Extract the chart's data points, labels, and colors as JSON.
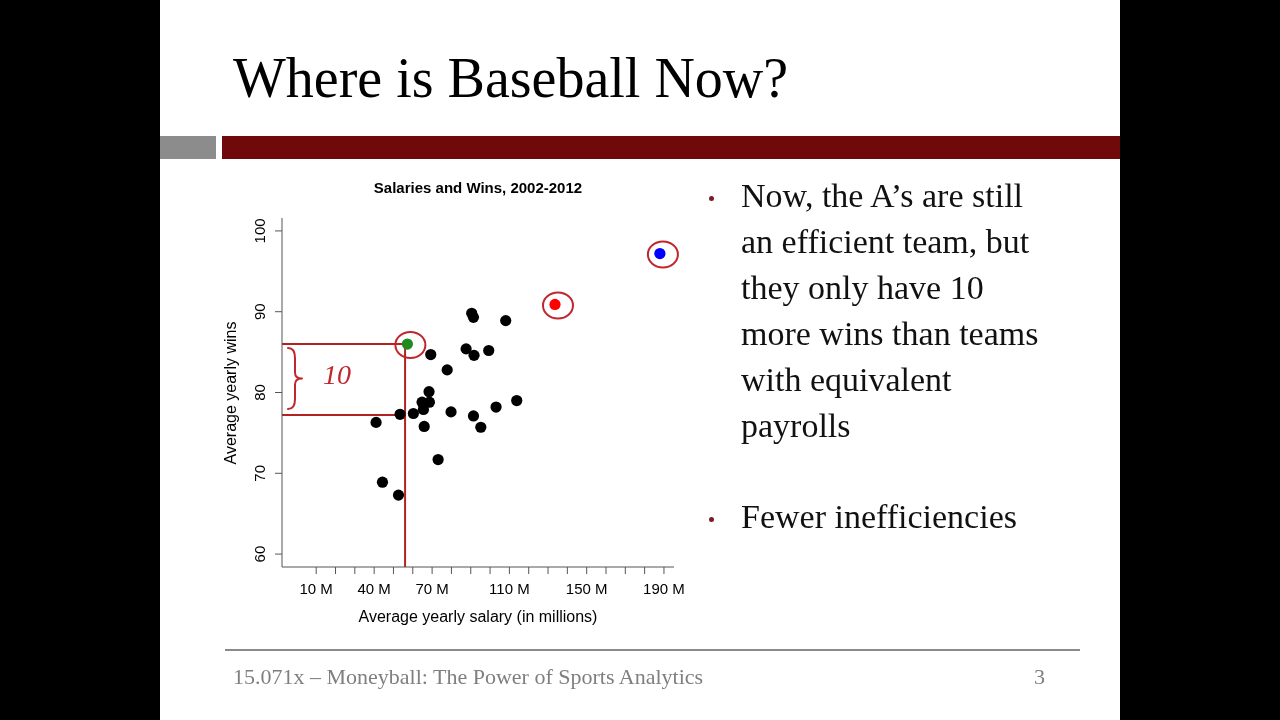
{
  "chart_data": {
    "type": "scatter",
    "title": "Where is Baseball Now?",
    "subtitle": "Salaries and Wins, 2002-2012",
    "xlabel": "Average yearly salary (in millions)",
    "ylabel": "Average yearly wins",
    "xlim": [
      -7.7,
      195.2
    ],
    "ylim": [
      58.4,
      101.6
    ],
    "xticks": [
      {
        "value": 10,
        "label": "10 M"
      },
      {
        "value": 20,
        "label": null
      },
      {
        "value": 30,
        "label": null
      },
      {
        "value": 40,
        "label": "40 M"
      },
      {
        "value": 50,
        "label": null
      },
      {
        "value": 60,
        "label": null
      },
      {
        "value": 70,
        "label": "70 M"
      },
      {
        "value": 80,
        "label": null
      },
      {
        "value": 90,
        "label": null
      },
      {
        "value": 100,
        "label": null
      },
      {
        "value": 110,
        "label": "110 M"
      },
      {
        "value": 120,
        "label": null
      },
      {
        "value": 130,
        "label": null
      },
      {
        "value": 140,
        "label": null
      },
      {
        "value": 150,
        "label": "150 M"
      },
      {
        "value": 160,
        "label": null
      },
      {
        "value": 170,
        "label": null
      },
      {
        "value": 180,
        "label": null
      },
      {
        "value": 190,
        "label": "190 M"
      }
    ],
    "yticks": [
      60,
      70,
      80,
      90,
      100
    ],
    "marker": "circle",
    "series": [
      {
        "color": "#000000",
        "x": [
          90.5,
          91.4,
          108.1,
          69.3,
          87.6,
          91.7,
          99.3,
          77.8,
          68.4,
          64.8,
          68.6,
          65.5,
          53.4,
          60.3,
          79.8,
          103.1,
          113.8,
          41.0,
          65.9,
          91.4,
          95.2,
          73.1,
          44.3,
          52.6
        ],
        "values": [
          89.8,
          89.3,
          88.9,
          84.7,
          85.4,
          84.6,
          85.2,
          82.8,
          80.1,
          78.8,
          78.8,
          77.9,
          77.3,
          77.4,
          77.6,
          78.2,
          79.0,
          76.3,
          75.8,
          77.1,
          75.7,
          71.7,
          68.9,
          67.3
        ]
      },
      {
        "color": "#1f8a1f",
        "x": [
          57.2
        ],
        "values": [
          86.0
        ]
      },
      {
        "color": "#ff0000",
        "x": [
          133.6
        ],
        "values": [
          90.9
        ]
      },
      {
        "color": "#0000ff",
        "x": [
          187.9
        ],
        "values": [
          97.2
        ]
      }
    ],
    "ref_lines": [
      {
        "axis": "x",
        "value": 56,
        "color": "#b22222"
      },
      {
        "axis": "y",
        "value": 86,
        "color": "#b22222"
      },
      {
        "axis": "y",
        "value": 77.2,
        "color": "#b22222"
      }
    ],
    "annotations": [
      "10",
      "Now, the A’s are still an efficient team, but they only have 10 more wins than teams with equivalent payrolls",
      "Fewer inefficiencies",
      "15.071x – Moneyball: The Power of Sports Analytics",
      "3"
    ]
  }
}
